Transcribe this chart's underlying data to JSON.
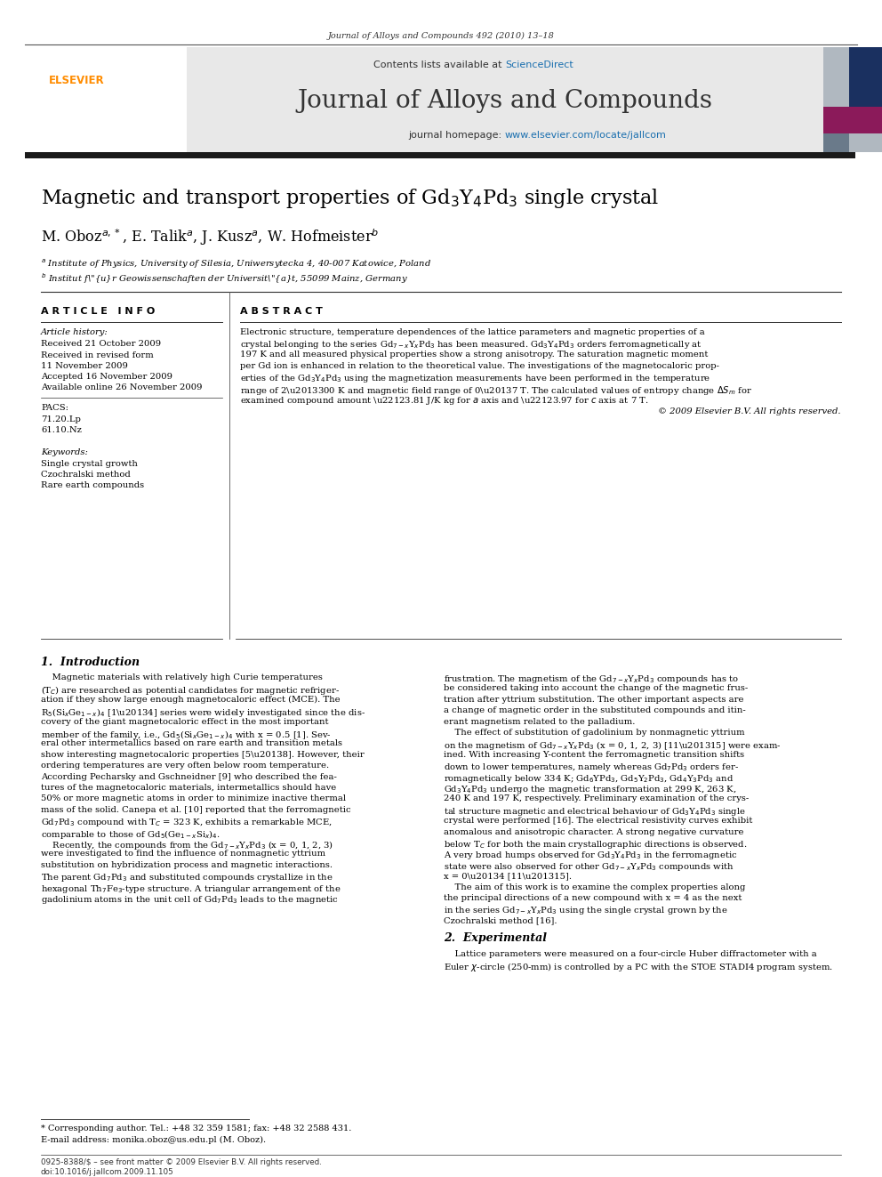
{
  "page_width": 9.92,
  "page_height": 13.23,
  "background_color": "#ffffff",
  "top_journal_line": "Journal of Alloys and Compounds 492 (2010) 13–18",
  "journal_title": "Journal of Alloys and Compounds",
  "sciencedirect_color": "#1a6faf",
  "homepage_url_color": "#1a6faf",
  "header_bg_color": "#e8e8e8",
  "dark_bar_color": "#1a1a1a",
  "section_article_info": "A R T I C L E   I N F O",
  "section_abstract": "A B S T R A C T",
  "article_history_label": "Article history:",
  "received": "Received 21 October 2009",
  "received_revised": "Received in revised form",
  "received_revised2": "11 November 2009",
  "accepted": "Accepted 16 November 2009",
  "available": "Available online 26 November 2009",
  "pacs_label": "PACS:",
  "pacs1": "71.20.Lp",
  "pacs2": "61.10.Nz",
  "keywords_label": "Keywords:",
  "kw1": "Single crystal growth",
  "kw2": "Czochralski method",
  "kw3": "Rare earth compounds",
  "copyright": "© 2009 Elsevier B.V. All rights reserved.",
  "footnote_star": "* Corresponding author. Tel.: +48 32 359 1581; fax: +48 32 2588 431.",
  "footnote_email": "E-mail address: monika.oboz@us.edu.pl (M. Oboz).",
  "bottom_line1": "0925-8388/$ – see front matter © 2009 Elsevier B.V. All rights reserved.",
  "bottom_line2": "doi:10.1016/j.jallcom.2009.11.105",
  "elsevier_color": "#ff8c00",
  "link_color": "#1a6faf"
}
